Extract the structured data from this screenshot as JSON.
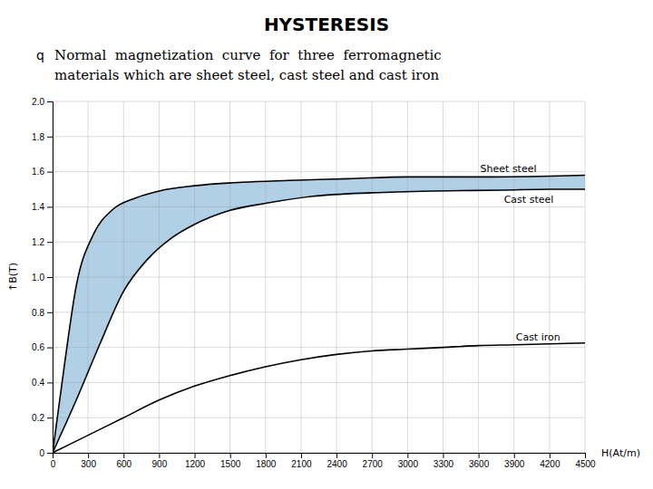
{
  "chart_data": {
    "type": "line",
    "title": "HYSTERESIS",
    "bullet": "q",
    "subtitle": [
      "Normal  magnetization  curve  for  three  ferromagnetic",
      "materials which are sheet steel, cast steel and cast iron"
    ],
    "xlabel": "H(At/m)",
    "ylabel": "↑B(T)",
    "xlim": [
      0,
      4500
    ],
    "ylim": [
      0,
      2.0
    ],
    "xticks": [
      0,
      300,
      600,
      900,
      1200,
      1500,
      1800,
      2100,
      2400,
      2700,
      3000,
      3300,
      3600,
      3900,
      4200,
      4500
    ],
    "yticks": [
      0,
      0.2,
      0.4,
      0.6,
      0.8,
      {
        "value": 1.0,
        "label": "1.0"
      },
      1.2,
      1.4,
      1.6,
      1.8,
      {
        "value": 2.0,
        "label": "2.0"
      }
    ],
    "grid": true,
    "series": [
      {
        "name": "Sheet steel",
        "color": "#000000",
        "x": [
          0,
          100,
          200,
          350,
          500,
          700,
          900,
          1200,
          1600,
          2000,
          2500,
          3000,
          3600,
          4200,
          4500
        ],
        "values": [
          0,
          0.5,
          0.95,
          1.25,
          1.38,
          1.45,
          1.49,
          1.52,
          1.54,
          1.55,
          1.56,
          1.57,
          1.57,
          1.575,
          1.58
        ]
      },
      {
        "name": "Cast steel",
        "color": "#000000",
        "x": [
          0,
          200,
          400,
          600,
          800,
          1000,
          1200,
          1500,
          1800,
          2200,
          2700,
          3200,
          3800,
          4200,
          4500
        ],
        "values": [
          0,
          0.3,
          0.62,
          0.92,
          1.1,
          1.22,
          1.3,
          1.38,
          1.42,
          1.46,
          1.48,
          1.49,
          1.495,
          1.5,
          1.5
        ]
      },
      {
        "name": "Cast iron",
        "color": "#000000",
        "x": [
          0,
          300,
          600,
          900,
          1200,
          1500,
          1800,
          2100,
          2400,
          2700,
          3000,
          3300,
          3600,
          3900,
          4200,
          4500
        ],
        "values": [
          0,
          0.1,
          0.2,
          0.3,
          0.38,
          0.44,
          0.49,
          0.53,
          0.56,
          0.58,
          0.59,
          0.6,
          0.61,
          0.615,
          0.62,
          0.625
        ]
      }
    ]
  }
}
